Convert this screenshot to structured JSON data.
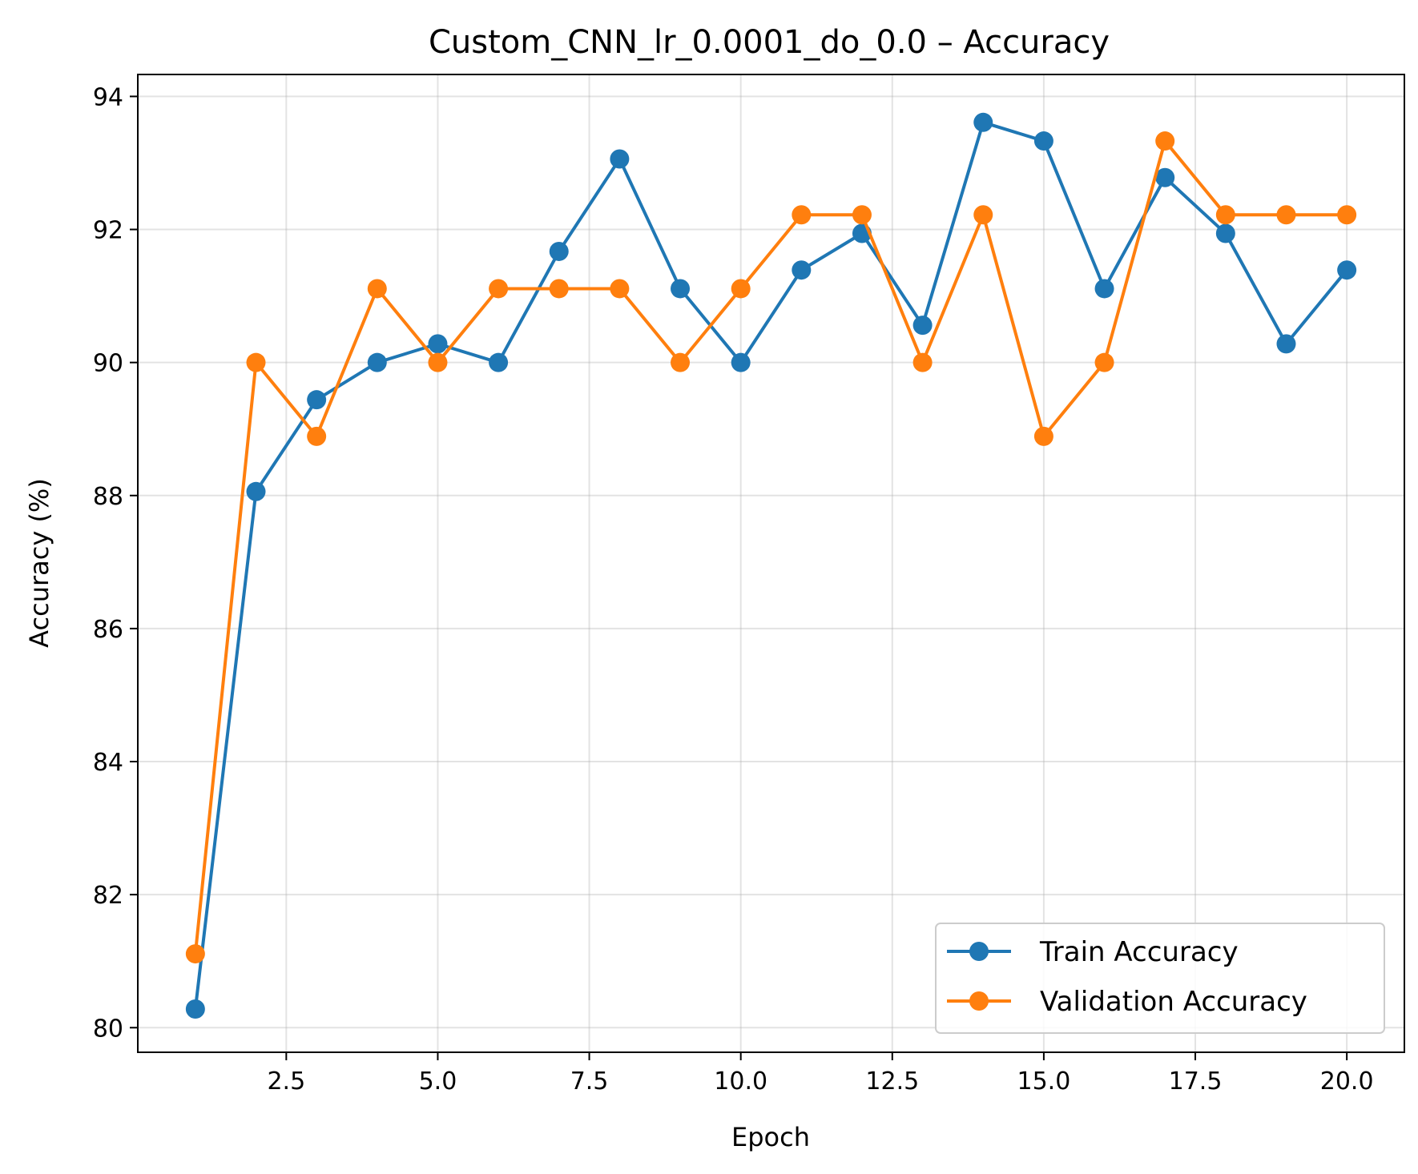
{
  "chart_data": {
    "type": "line",
    "title": "Custom_CNN_lr_0.0001_do_0.0 – Accuracy",
    "xlabel": "Epoch",
    "ylabel": "Accuracy (%)",
    "xlim": [
      0.05,
      20.95
    ],
    "ylim": [
      79.63,
      94.33
    ],
    "xticks": [
      2.5,
      5.0,
      7.5,
      10.0,
      12.5,
      15.0,
      17.5,
      20.0
    ],
    "xtick_labels": [
      "2.5",
      "5.0",
      "7.5",
      "10.0",
      "12.5",
      "15.0",
      "17.5",
      "20.0"
    ],
    "yticks": [
      80,
      82,
      84,
      86,
      88,
      90,
      92,
      94
    ],
    "ytick_labels": [
      "80",
      "82",
      "84",
      "86",
      "88",
      "90",
      "92",
      "94"
    ],
    "grid": true,
    "legend_position": "lower-right",
    "x": [
      1,
      2,
      3,
      4,
      5,
      6,
      7,
      8,
      9,
      10,
      11,
      12,
      13,
      14,
      15,
      16,
      17,
      18,
      19,
      20
    ],
    "series": [
      {
        "name": "Train Accuracy",
        "color": "#1f77b4",
        "values": [
          80.28,
          88.06,
          89.44,
          90.0,
          90.28,
          90.0,
          91.67,
          93.06,
          91.11,
          90.0,
          91.39,
          91.94,
          90.56,
          93.61,
          93.33,
          91.11,
          92.78,
          91.94,
          90.28,
          91.39
        ]
      },
      {
        "name": "Validation Accuracy",
        "color": "#ff7f0e",
        "values": [
          81.11,
          90.0,
          88.89,
          91.11,
          90.0,
          91.11,
          91.11,
          91.11,
          90.0,
          91.11,
          92.22,
          92.22,
          90.0,
          92.22,
          88.89,
          90.0,
          93.33,
          92.22,
          92.22,
          92.22
        ]
      }
    ]
  }
}
